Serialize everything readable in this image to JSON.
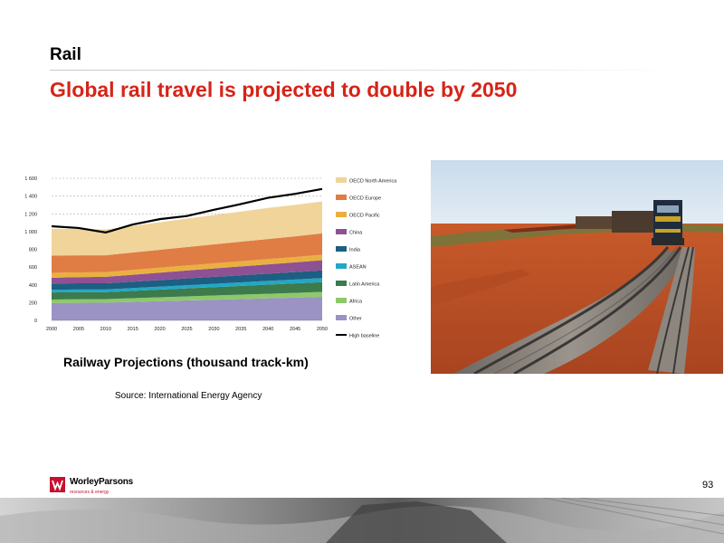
{
  "slide": {
    "section": "Rail",
    "headline": "Global rail travel is projected to double by 2050",
    "caption": "Railway Projections (thousand track-km)",
    "source": "Source: International Energy Agency",
    "page_number": "93",
    "logo_name": "WorleyParsons",
    "logo_tagline": "resources & energy"
  },
  "colors": {
    "headline": "#d62418",
    "brand_red": "#c8102e"
  },
  "chart_data": {
    "type": "area",
    "stacked": true,
    "x": [
      2000,
      2005,
      2010,
      2015,
      2020,
      2025,
      2030,
      2035,
      2040,
      2045,
      2050
    ],
    "xlabel": "",
    "ylabel": "",
    "ylim": [
      0,
      1600
    ],
    "yticks": [
      0,
      200,
      400,
      600,
      800,
      1000,
      1200,
      1400,
      1600
    ],
    "yticklabels": [
      "0",
      "200",
      "400",
      "600",
      "800",
      "1 000",
      "1 200",
      "1 400",
      "1 600"
    ],
    "grid": true,
    "legend_position": "right",
    "series": [
      {
        "name": "Other",
        "color": "#9b93c4",
        "values": [
          195,
          198,
          200,
          208,
          216,
          224,
          232,
          240,
          248,
          256,
          265
        ]
      },
      {
        "name": "Africa",
        "color": "#8dc96a",
        "values": [
          40,
          40,
          40,
          42,
          44,
          46,
          48,
          50,
          52,
          54,
          56
        ]
      },
      {
        "name": "Latin America",
        "color": "#3d7a4c",
        "values": [
          80,
          80,
          78,
          82,
          86,
          90,
          94,
          98,
          102,
          106,
          110
        ]
      },
      {
        "name": "ASEAN",
        "color": "#21a8c6",
        "values": [
          30,
          30,
          30,
          32,
          34,
          36,
          38,
          40,
          42,
          44,
          46
        ]
      },
      {
        "name": "India",
        "color": "#1c5f82",
        "values": [
          70,
          70,
          70,
          72,
          74,
          76,
          78,
          80,
          82,
          84,
          86
        ]
      },
      {
        "name": "China",
        "color": "#8e5193",
        "values": [
          65,
          68,
          72,
          78,
          84,
          90,
          95,
          100,
          105,
          110,
          115
        ]
      },
      {
        "name": "OECD Pacific",
        "color": "#eab03f",
        "values": [
          55,
          54,
          53,
          54,
          55,
          56,
          57,
          58,
          59,
          60,
          61
        ]
      },
      {
        "name": "OECD Europe",
        "color": "#e07d44",
        "values": [
          195,
          193,
          190,
          196,
          202,
          208,
          214,
          220,
          226,
          232,
          240
        ]
      },
      {
        "name": "OECD North America",
        "color": "#f0d49a",
        "values": [
          300,
          297,
          290,
          300,
          310,
          320,
          330,
          340,
          350,
          355,
          360
        ]
      }
    ],
    "line": {
      "name": "High baseline",
      "color": "#000000",
      "values": [
        1060,
        1040,
        990,
        1080,
        1140,
        1175,
        1245,
        1310,
        1380,
        1425,
        1480
      ]
    }
  }
}
